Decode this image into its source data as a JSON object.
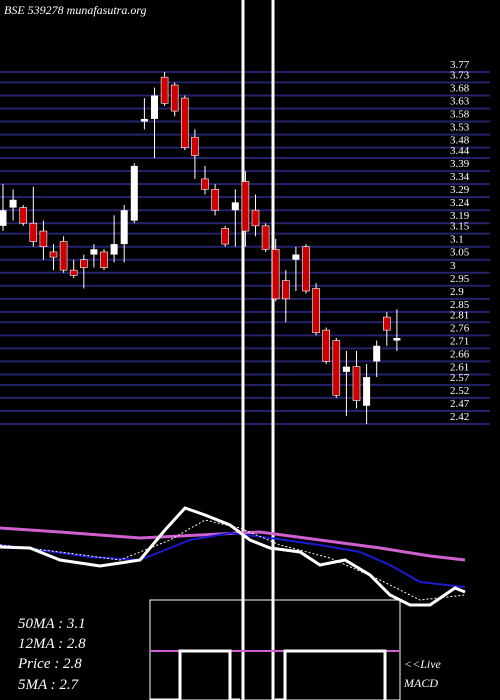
{
  "chart_data": {
    "type": "candlestick",
    "title": "BSE 539278 munafasutra.org",
    "ylim": [
      2.42,
      3.77
    ],
    "yticks": [
      3.77,
      3.73,
      3.68,
      3.63,
      3.58,
      3.53,
      3.48,
      3.44,
      3.39,
      3.34,
      3.29,
      3.24,
      3.19,
      3.15,
      3.1,
      3.05,
      3,
      2.95,
      2.9,
      2.85,
      2.81,
      2.76,
      2.71,
      2.66,
      2.61,
      2.57,
      2.52,
      2.47,
      2.42
    ],
    "grid": true,
    "grid_color": "#24246e",
    "up_color": "#ffffff",
    "down_color": "#cc0000",
    "open": [
      3.18,
      3.25,
      3.25,
      3.19,
      3.16,
      3.08,
      3.12,
      3.01,
      3.05,
      3.07,
      3.08,
      3.07,
      3.11,
      3.2,
      3.58,
      3.59,
      3.75,
      3.72,
      3.67,
      3.52,
      3.36,
      3.32,
      3.17,
      3.24,
      3.35,
      3.24,
      3.18,
      3.09,
      2.97,
      3.05,
      3.1,
      2.94,
      2.78,
      2.74,
      2.62,
      2.64,
      2.49,
      2.66,
      2.83,
      2.74
    ],
    "high": [
      3.34,
      3.32,
      3.26,
      3.33,
      3.2,
      3.11,
      3.14,
      3.05,
      3.07,
      3.11,
      3.09,
      3.22,
      3.26,
      3.42,
      3.67,
      3.71,
      3.77,
      3.73,
      3.68,
      3.55,
      3.41,
      3.34,
      3.18,
      3.32,
      3.39,
      3.3,
      3.19,
      3.13,
      3.01,
      3.1,
      3.11,
      2.96,
      2.79,
      2.75,
      2.7,
      2.7,
      2.65,
      2.74,
      2.85,
      2.86
    ],
    "low": [
      3.16,
      3.2,
      3.18,
      3.1,
      3.05,
      3.01,
      3.0,
      2.98,
      2.94,
      3.02,
      3.01,
      3.04,
      3.04,
      3.19,
      3.55,
      3.44,
      3.64,
      3.6,
      3.47,
      3.36,
      3.3,
      3.22,
      3.1,
      3.1,
      3.1,
      3.14,
      3.08,
      2.89,
      2.81,
      2.93,
      2.92,
      2.76,
      2.65,
      2.52,
      2.45,
      2.48,
      2.42,
      2.6,
      2.72,
      2.7
    ],
    "close": [
      3.24,
      3.28,
      3.19,
      3.12,
      3.1,
      3.06,
      3.01,
      2.99,
      3.02,
      3.09,
      3.02,
      3.11,
      3.24,
      3.41,
      3.59,
      3.68,
      3.65,
      3.62,
      3.48,
      3.45,
      3.32,
      3.24,
      3.11,
      3.27,
      3.16,
      3.18,
      3.09,
      2.9,
      2.9,
      3.07,
      2.93,
      2.77,
      2.66,
      2.53,
      2.64,
      2.51,
      2.6,
      2.72,
      2.78,
      2.75
    ]
  },
  "info": {
    "ma50": "50MA : 3.1",
    "ma12": "12MA : 2.8",
    "price": "Price  : 2.8",
    "ma5": "5MA : 2.7",
    "live": "<<Live",
    "macd": "MACD"
  }
}
